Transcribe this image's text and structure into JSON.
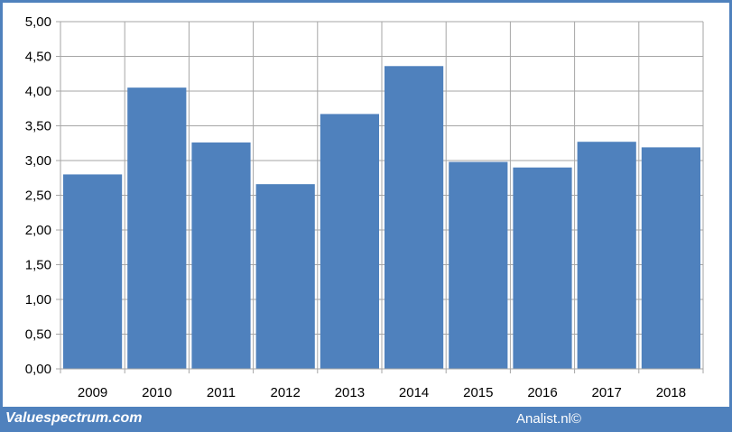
{
  "chart_data": {
    "type": "bar",
    "categories": [
      "2009",
      "2010",
      "2011",
      "2012",
      "2013",
      "2014",
      "2015",
      "2016",
      "2017",
      "2018"
    ],
    "values": [
      2.8,
      4.05,
      3.26,
      2.66,
      3.67,
      4.36,
      2.98,
      2.9,
      3.27,
      3.19
    ],
    "yticks": [
      "0,00",
      "0,50",
      "1,00",
      "1,50",
      "2,00",
      "2,50",
      "3,00",
      "3,50",
      "4,00",
      "4,50",
      "5,00"
    ],
    "ylim": [
      0,
      5
    ],
    "grid": true,
    "bar_color": "#4f81bd",
    "title": "",
    "xlabel": "",
    "ylabel": ""
  },
  "footer": {
    "left": "Valuespectrum.com",
    "right": "Analist.nl©"
  },
  "colors": {
    "frame": "#4f81bd",
    "background": "#ffffff",
    "grid": "#a6a6a6"
  }
}
